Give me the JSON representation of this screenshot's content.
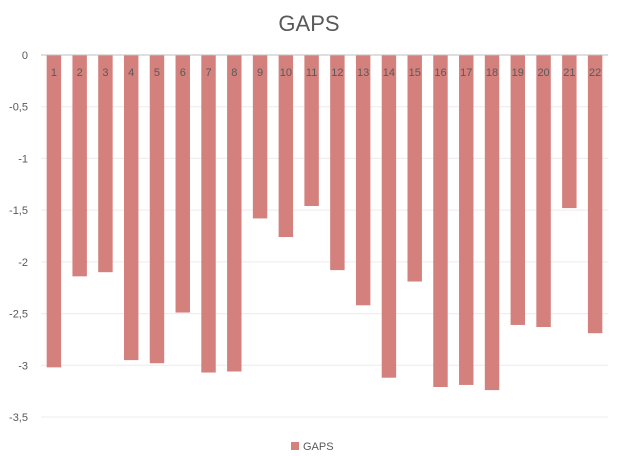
{
  "chart_data": {
    "type": "bar",
    "title": "GAPS",
    "xlabel": "",
    "ylabel": "",
    "categories": [
      "1",
      "2",
      "3",
      "4",
      "5",
      "6",
      "7",
      "8",
      "9",
      "10",
      "11",
      "12",
      "13",
      "14",
      "15",
      "16",
      "17",
      "18",
      "19",
      "20",
      "21",
      "22"
    ],
    "series": [
      {
        "name": "GAPS",
        "color": "#d4807d",
        "values": [
          -3.02,
          -2.14,
          -2.1,
          -2.95,
          -2.98,
          -2.49,
          -3.07,
          -3.06,
          -1.58,
          -1.76,
          -1.46,
          -2.08,
          -2.42,
          -3.12,
          -2.19,
          -3.21,
          -3.19,
          -3.24,
          -2.61,
          -2.63,
          -1.48,
          -2.69
        ]
      }
    ],
    "ylim": [
      -3.5,
      0
    ],
    "yticks": [
      0,
      -0.5,
      -1,
      -1.5,
      -2,
      -2.5,
      -3,
      -3.5
    ],
    "ytick_labels": [
      "0",
      "-0,5",
      "-1",
      "-1,5",
      "-2",
      "-2,5",
      "-3",
      "-3,5"
    ],
    "grid": true,
    "legend_position": "bottom"
  }
}
